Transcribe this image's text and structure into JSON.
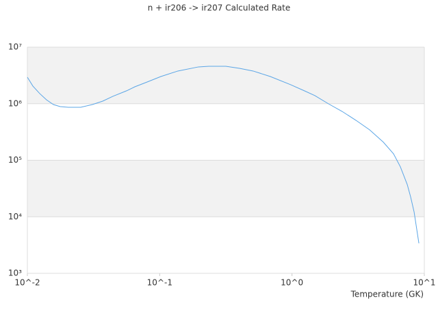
{
  "chart_data": {
    "type": "line",
    "title": "n + ir206 -> ir207 Calculated Rate",
    "x_label": "Temperature (GK)",
    "log_x": true,
    "log_y": true,
    "xlim": [
      0.01,
      10
    ],
    "ylim": [
      1000,
      10000000
    ],
    "xticks": [
      {
        "value": 0.01,
        "label": "10^-2"
      },
      {
        "value": 0.1,
        "label": "10^-1"
      },
      {
        "value": 1,
        "label": "10^0"
      },
      {
        "value": 10,
        "label": "10^1"
      }
    ],
    "yticks": [
      {
        "value": 1000,
        "label": "10³"
      },
      {
        "value": 10000,
        "label": "10⁴"
      },
      {
        "value": 100000,
        "label": "10⁵"
      },
      {
        "value": 1000000,
        "label": "10⁶"
      },
      {
        "value": 10000000,
        "label": "10⁷"
      }
    ],
    "band_color": "#f2f2f2",
    "series": [
      {
        "color": "#5aa5e6",
        "x": [
          0.01,
          0.011,
          0.0124,
          0.01396,
          0.01573,
          0.0177,
          0.0204,
          0.0253,
          0.031,
          0.0371,
          0.0443,
          0.0562,
          0.0649,
          0.0804,
          0.102,
          0.137,
          0.196,
          0.235,
          0.316,
          0.401,
          0.509,
          0.686,
          0.98,
          1.24,
          1.49,
          1.89,
          2.39,
          3.04,
          3.86,
          4.9,
          5.85,
          6.59,
          7.43,
          7.88,
          8.37,
          9.1
        ],
        "values": [
          2940000,
          2050000,
          1510000,
          1170000,
          966000,
          889000,
          865000,
          865000,
          966000,
          1110000,
          1350000,
          1690000,
          1990000,
          2420000,
          3020000,
          3780000,
          4470000,
          4590000,
          4590000,
          4220000,
          3780000,
          3020000,
          2160000,
          1690000,
          1390000,
          993000,
          731000,
          509000,
          345000,
          209000,
          130000,
          76700,
          37200,
          22500,
          12200,
          3400
        ]
      }
    ]
  }
}
